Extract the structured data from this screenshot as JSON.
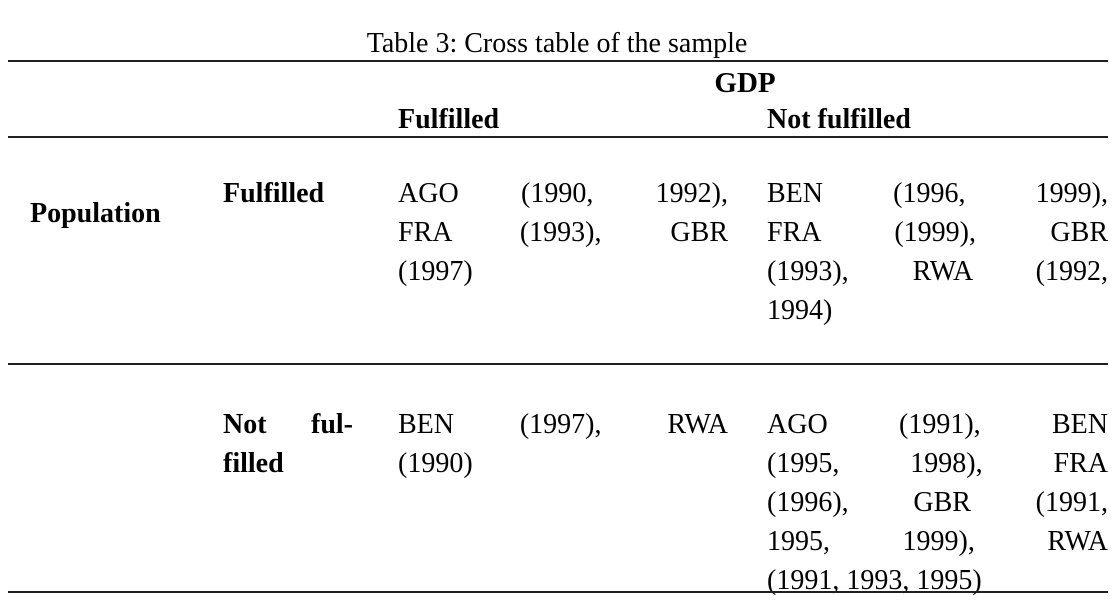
{
  "caption": "Table 3: Cross table of the sample",
  "colors": {
    "background": "#ffffff",
    "text": "#000000",
    "rule": "#1f1f1f"
  },
  "table": {
    "column_group_header": "GDP",
    "row_group_header": "Population",
    "column_headers": {
      "fulfilled": "Fulfilled",
      "not_fulfilled": "Not fulfilled"
    },
    "rows": [
      {
        "label_lines": [
          "Fulfilled"
        ],
        "gdp_fulfilled_lines": [
          "AGO (1990, 1992),",
          "FRA (1993), GBR",
          "(1997)"
        ],
        "gdp_not_fulfilled_lines": [
          "BEN (1996, 1999),",
          "FRA (1999), GBR",
          "(1993), RWA (1992,",
          "1994)"
        ]
      },
      {
        "label_lines": [
          "Not ful-",
          "filled"
        ],
        "gdp_fulfilled_lines": [
          "BEN (1997), RWA",
          "(1990)"
        ],
        "gdp_not_fulfilled_lines": [
          "AGO (1991), BEN",
          "(1995, 1998), FRA",
          "(1996), GBR (1991,",
          "1995, 1999), RWA",
          "(1991, 1993, 1995)"
        ]
      }
    ]
  }
}
